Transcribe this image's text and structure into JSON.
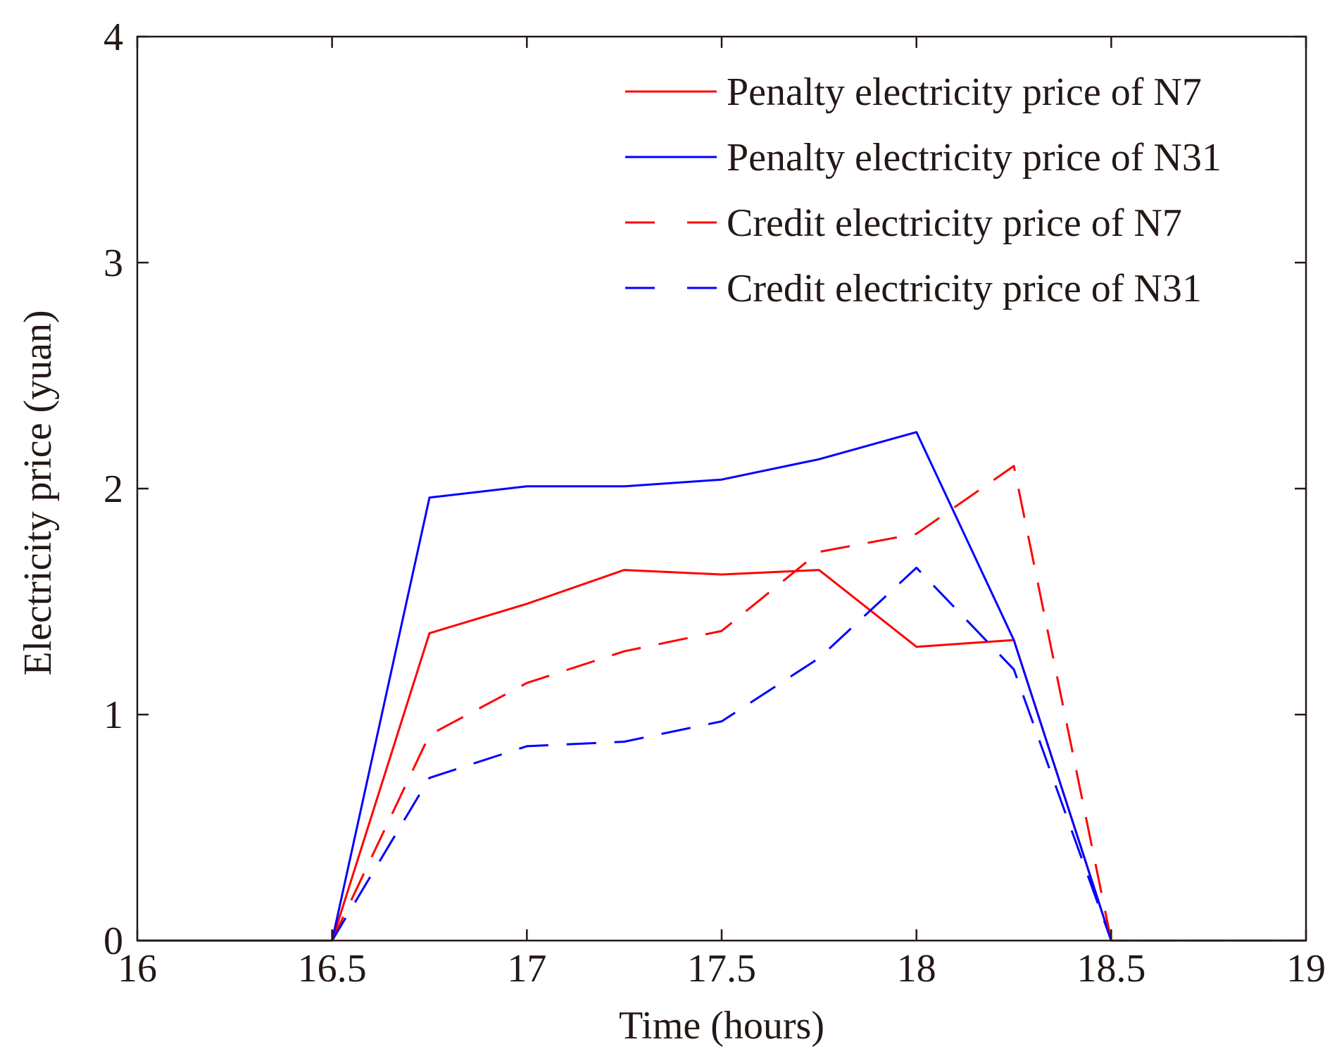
{
  "chart_data": {
    "type": "line",
    "xlabel": "Time (hours)",
    "ylabel": "Electricity price (yuan)",
    "xlim": [
      16,
      19
    ],
    "ylim": [
      0,
      4
    ],
    "xticks": [
      16,
      16.5,
      17,
      17.5,
      18,
      18.5,
      19
    ],
    "xtick_labels": [
      "16",
      "16.5",
      "17",
      "17.5",
      "18",
      "18.5",
      "19"
    ],
    "yticks": [
      0,
      1,
      2,
      3,
      4
    ],
    "ytick_labels": [
      "0",
      "1",
      "2",
      "3",
      "4"
    ],
    "grid": false,
    "legend_position": "top-right",
    "x": [
      16,
      16.25,
      16.5,
      16.75,
      17,
      17.25,
      17.5,
      17.75,
      18,
      18.25,
      18.5,
      18.75,
      19
    ],
    "series": [
      {
        "name": "Penalty electricity price of N7",
        "color": "#ff0000",
        "dash": "solid",
        "values": [
          0,
          0,
          0,
          1.36,
          1.49,
          1.64,
          1.62,
          1.64,
          1.3,
          1.33,
          0,
          0,
          0
        ]
      },
      {
        "name": "Penalty electricity price of N31",
        "color": "#0000ff",
        "dash": "solid",
        "values": [
          0,
          0,
          0,
          1.96,
          2.01,
          2.01,
          2.04,
          2.13,
          2.25,
          1.33,
          0,
          0,
          0
        ]
      },
      {
        "name": "Credit electricity price of N7",
        "color": "#ff0000",
        "dash": "dashed",
        "values": [
          0,
          0,
          0,
          0.91,
          1.14,
          1.28,
          1.37,
          1.72,
          1.8,
          2.1,
          0,
          0,
          0
        ]
      },
      {
        "name": "Credit electricity price of N31",
        "color": "#0000ff",
        "dash": "dashed",
        "values": [
          0,
          0,
          0,
          0.72,
          0.86,
          0.88,
          0.97,
          1.25,
          1.65,
          1.2,
          0,
          0,
          0
        ]
      }
    ]
  }
}
